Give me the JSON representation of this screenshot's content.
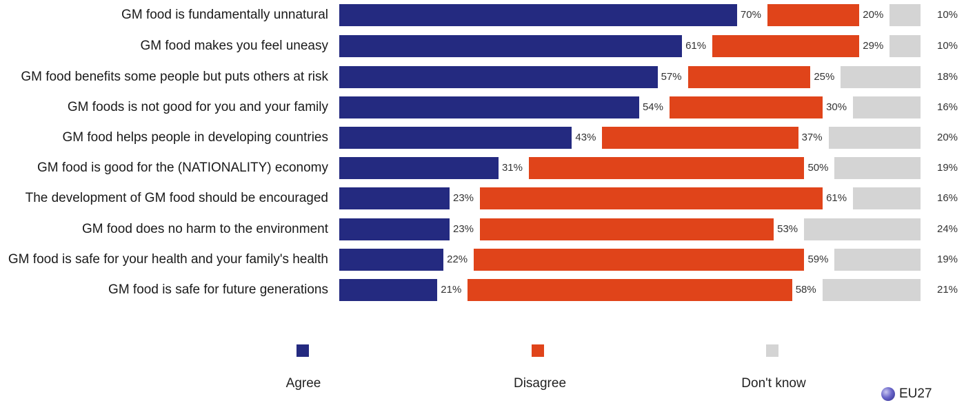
{
  "colors": {
    "agree": "#242a80",
    "disagree": "#e0441a",
    "dont_know": "#d4d4d4"
  },
  "legend": {
    "agree": "Agree",
    "disagree": "Disagree",
    "dont_know": "Don't know"
  },
  "badge": {
    "label": "EU27",
    "icon": "globe-dot-icon"
  },
  "chart_data": {
    "type": "bar",
    "orientation": "horizontal",
    "stacked": true,
    "categories": [
      "GM food is fundamentally unnatural",
      "GM food makes you feel uneasy",
      "GM food benefits some people but puts others at risk",
      "GM foods is not good for you and your family",
      "GM food helps people in developing countries",
      "GM food is good for the (NATIONALITY) economy",
      "The development of GM food should be encouraged",
      "GM food does no harm to the environment",
      "GM food is safe for your health and your family's health",
      "GM food is safe for future generations"
    ],
    "series": [
      {
        "name": "Agree",
        "values": [
          70,
          61,
          57,
          54,
          43,
          31,
          23,
          23,
          22,
          21
        ]
      },
      {
        "name": "Disagree",
        "values": [
          20,
          29,
          25,
          30,
          37,
          50,
          61,
          53,
          59,
          58
        ]
      },
      {
        "name": "Don't know",
        "values": [
          10,
          10,
          18,
          16,
          20,
          19,
          16,
          24,
          19,
          21
        ]
      }
    ],
    "value_labels": [
      [
        "70%",
        "20%",
        "10%"
      ],
      [
        "61%",
        "29%",
        "10%"
      ],
      [
        "57%",
        "25%",
        "18%"
      ],
      [
        "54%",
        "30%",
        "16%"
      ],
      [
        "43%",
        "37%",
        "20%"
      ],
      [
        "31%",
        "50%",
        "19%"
      ],
      [
        "23%",
        "61%",
        "16%"
      ],
      [
        "23%",
        "53%",
        "24%"
      ],
      [
        "22%",
        "59%",
        "19%"
      ],
      [
        "21%",
        "58%",
        "21%"
      ]
    ],
    "xlim": [
      0,
      100
    ],
    "unit": "%",
    "legend_position": "bottom"
  }
}
